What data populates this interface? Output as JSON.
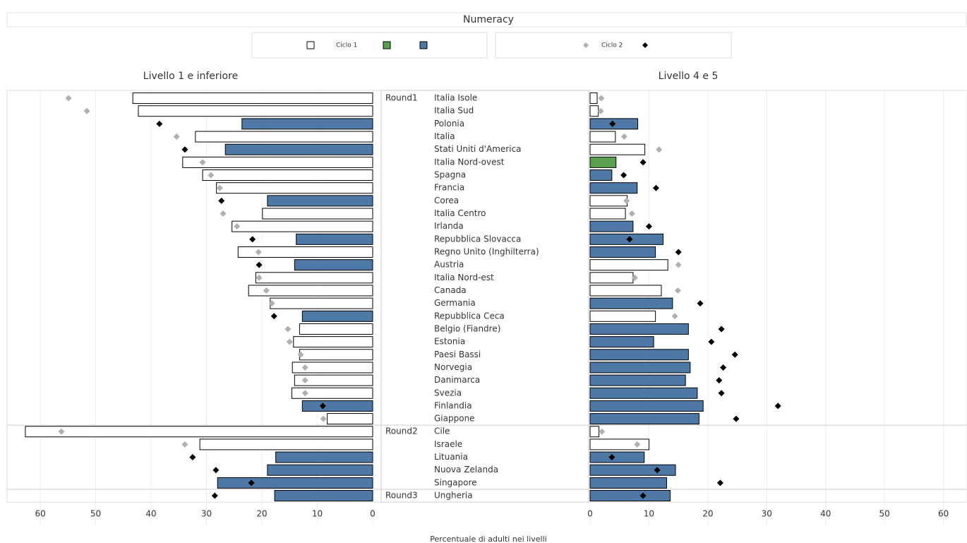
{
  "chart_data": {
    "type": "butterfly-bar",
    "title": "Numeracy",
    "xlabel": "Percentuale di adulti nei livelli",
    "legend": [
      {
        "label": "Ciclo 1",
        "shape": "square",
        "colors": [
          "#ffffff",
          "#59a14f",
          "#4e79a7"
        ]
      },
      {
        "label": "Ciclo 2",
        "shape": "diamond",
        "colors": [
          "#b0b0b0",
          "#000000"
        ]
      }
    ],
    "rounds": [
      {
        "name": "Round1",
        "countries": [
          "Italia Isole",
          "Italia Sud",
          "Polonia",
          "Italia",
          "Stati Uniti d'America",
          "Italia Nord-ovest",
          "Spagna",
          "Francia",
          "Corea",
          "Italia Centro",
          "Irlanda",
          "Repubblica Slovacca",
          "Regno Unito (Inghilterra)",
          "Austria",
          "Italia Nord-est",
          "Canada",
          "Germania",
          "Repubblica Ceca",
          "Belgio (Fiandre)",
          "Estonia",
          "Paesi Bassi",
          "Norvegia",
          "Danimarca",
          "Svezia",
          "Finlandia",
          "Giappone"
        ]
      },
      {
        "name": "Round2",
        "countries": [
          "Cile",
          "Israele",
          "Lituania",
          "Nuova Zelanda",
          "Singapore"
        ]
      },
      {
        "name": "Round3",
        "countries": [
          "Ungheria"
        ]
      }
    ],
    "grid": true,
    "panels": [
      {
        "title": "Livello 1 e inferiore",
        "reversed": true,
        "xlim": [
          0,
          66
        ],
        "xticks": [
          0,
          10,
          20,
          30,
          40,
          50,
          60
        ],
        "bar_values": [
          43.3,
          42.3,
          23.6,
          32.0,
          26.6,
          34.3,
          30.7,
          28.2,
          19.0,
          19.9,
          25.4,
          13.8,
          24.3,
          14.1,
          21.1,
          22.4,
          18.5,
          12.7,
          13.2,
          14.3,
          13.2,
          14.5,
          14.1,
          14.6,
          12.7,
          8.2,
          62.7,
          31.2,
          17.5,
          19.0,
          28.0,
          17.7
        ],
        "bar_colors": [
          "#ffffff",
          "#ffffff",
          "#4e79a7",
          "#ffffff",
          "#4e79a7",
          "#ffffff",
          "#ffffff",
          "#ffffff",
          "#4e79a7",
          "#ffffff",
          "#ffffff",
          "#4e79a7",
          "#ffffff",
          "#4e79a7",
          "#ffffff",
          "#ffffff",
          "#ffffff",
          "#4e79a7",
          "#ffffff",
          "#ffffff",
          "#ffffff",
          "#ffffff",
          "#ffffff",
          "#ffffff",
          "#4e79a7",
          "#ffffff",
          "#ffffff",
          "#ffffff",
          "#4e79a7",
          "#4e79a7",
          "#4e79a7",
          "#4e79a7"
        ],
        "marker_values": [
          54.9,
          51.6,
          38.5,
          35.4,
          33.9,
          30.7,
          29.2,
          27.6,
          27.3,
          27.0,
          24.5,
          21.7,
          20.6,
          20.5,
          20.5,
          19.2,
          18.2,
          17.8,
          15.3,
          15.0,
          13.0,
          12.2,
          12.2,
          12.2,
          9.0,
          8.9,
          56.2,
          33.9,
          32.5,
          28.3,
          21.9,
          28.5
        ],
        "marker_colors": [
          "#b0b0b0",
          "#b0b0b0",
          "#000000",
          "#b0b0b0",
          "#000000",
          "#b0b0b0",
          "#b0b0b0",
          "#b0b0b0",
          "#000000",
          "#b0b0b0",
          "#b0b0b0",
          "#000000",
          "#b0b0b0",
          "#000000",
          "#b0b0b0",
          "#b0b0b0",
          "#b0b0b0",
          "#000000",
          "#b0b0b0",
          "#b0b0b0",
          "#b0b0b0",
          "#b0b0b0",
          "#b0b0b0",
          "#b0b0b0",
          "#000000",
          "#b0b0b0",
          "#b0b0b0",
          "#b0b0b0",
          "#000000",
          "#000000",
          "#000000",
          "#000000"
        ]
      },
      {
        "title": "Livello 4 e 5",
        "reversed": false,
        "xlim": [
          0,
          64
        ],
        "xticks": [
          0,
          10,
          20,
          30,
          40,
          50,
          60
        ],
        "bar_values": [
          1.2,
          1.4,
          8.1,
          4.3,
          9.3,
          4.4,
          3.7,
          8.0,
          6.3,
          6.0,
          7.3,
          12.4,
          11.1,
          13.2,
          7.3,
          12.1,
          14.0,
          11.1,
          16.7,
          10.8,
          16.7,
          17.0,
          16.2,
          18.2,
          19.2,
          18.5,
          1.5,
          10.0,
          9.2,
          14.5,
          13.0,
          13.6
        ],
        "bar_colors": [
          "#ffffff",
          "#ffffff",
          "#4e79a7",
          "#ffffff",
          "#ffffff",
          "#59a14f",
          "#4e79a7",
          "#4e79a7",
          "#ffffff",
          "#ffffff",
          "#4e79a7",
          "#4e79a7",
          "#4e79a7",
          "#ffffff",
          "#ffffff",
          "#ffffff",
          "#4e79a7",
          "#ffffff",
          "#4e79a7",
          "#4e79a7",
          "#4e79a7",
          "#4e79a7",
          "#4e79a7",
          "#4e79a7",
          "#4e79a7",
          "#4e79a7",
          "#ffffff",
          "#ffffff",
          "#4e79a7",
          "#4e79a7",
          "#4e79a7",
          "#4e79a7"
        ],
        "marker_values": [
          1.9,
          1.8,
          3.8,
          5.8,
          11.7,
          9.0,
          5.7,
          11.2,
          6.2,
          7.1,
          10.0,
          6.7,
          15.0,
          15.0,
          7.6,
          14.9,
          18.7,
          14.4,
          22.3,
          20.6,
          24.6,
          22.6,
          21.9,
          22.3,
          31.9,
          24.8,
          2.0,
          8.0,
          3.7,
          11.4,
          22.1,
          9.0
        ],
        "marker_colors": [
          "#b0b0b0",
          "#b0b0b0",
          "#000000",
          "#b0b0b0",
          "#b0b0b0",
          "#000000",
          "#000000",
          "#000000",
          "#b0b0b0",
          "#b0b0b0",
          "#000000",
          "#000000",
          "#000000",
          "#b0b0b0",
          "#b0b0b0",
          "#b0b0b0",
          "#000000",
          "#b0b0b0",
          "#000000",
          "#000000",
          "#000000",
          "#000000",
          "#000000",
          "#000000",
          "#000000",
          "#000000",
          "#b0b0b0",
          "#b0b0b0",
          "#000000",
          "#000000",
          "#000000",
          "#000000"
        ]
      }
    ]
  }
}
